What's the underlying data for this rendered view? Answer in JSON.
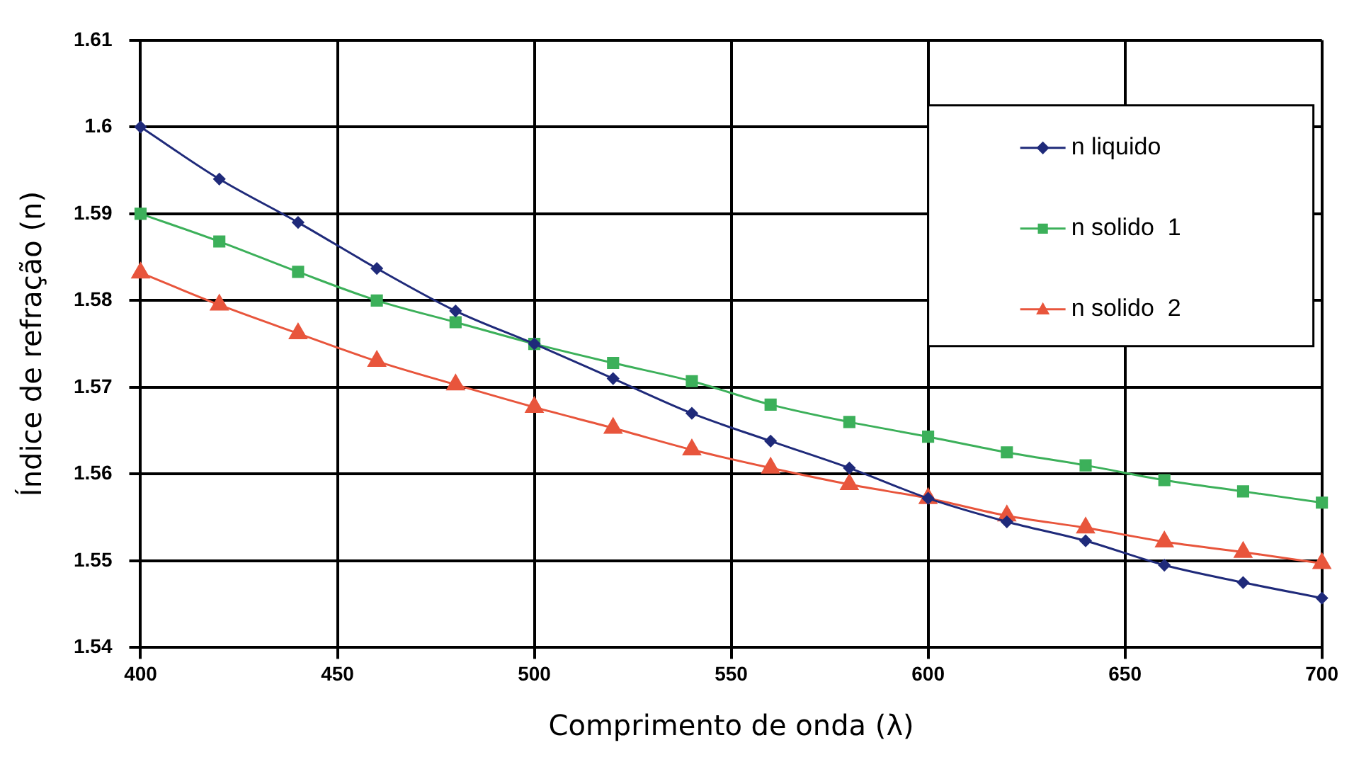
{
  "chart_data": {
    "type": "line",
    "xlabel": "Comprimento de onda (λ)",
    "ylabel": "Índice de refração (n)",
    "x": [
      400,
      420,
      440,
      460,
      480,
      500,
      520,
      540,
      560,
      580,
      600,
      620,
      640,
      660,
      680,
      700
    ],
    "series": [
      {
        "name": "n liquido",
        "color": "#1f2a7a",
        "marker": "diamond",
        "values": [
          1.6,
          1.594,
          1.589,
          1.5837,
          1.5788,
          1.575,
          1.571,
          1.567,
          1.5638,
          1.5607,
          1.5572,
          1.5545,
          1.5523,
          1.5495,
          1.5475,
          1.5457
        ]
      },
      {
        "name": "n solido  1",
        "color": "#3cb05a",
        "marker": "square",
        "values": [
          1.59,
          1.5868,
          1.5833,
          1.58,
          1.5775,
          1.575,
          1.5728,
          1.5707,
          1.568,
          1.566,
          1.5643,
          1.5625,
          1.561,
          1.5593,
          1.558,
          1.5567
        ]
      },
      {
        "name": "n solido  2",
        "color": "#e8553c",
        "marker": "triangle",
        "values": [
          1.5832,
          1.5795,
          1.5762,
          1.573,
          1.5703,
          1.5677,
          1.5653,
          1.5628,
          1.5607,
          1.5588,
          1.5572,
          1.5552,
          1.5538,
          1.5522,
          1.551,
          1.5497
        ]
      }
    ],
    "xlim": [
      400,
      700
    ],
    "xticks": [
      400,
      450,
      500,
      550,
      600,
      650,
      700
    ],
    "ylim": [
      1.54,
      1.61
    ],
    "yticks": [
      1.54,
      1.55,
      1.56,
      1.57,
      1.58,
      1.59,
      1.6,
      1.61
    ],
    "grid": true,
    "legend": "top right"
  }
}
